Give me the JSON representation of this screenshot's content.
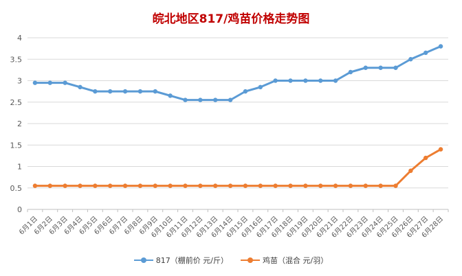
{
  "chart_data": {
    "type": "line",
    "title": "皖北地区817/鸡苗价格走势图",
    "xlabel": "",
    "ylabel": "",
    "ylim": [
      0,
      4
    ],
    "yticks": [
      "0",
      "0.5",
      "1",
      "1.5",
      "2",
      "2.5",
      "3",
      "3.5",
      "4"
    ],
    "grid": true,
    "legend_position": "bottom",
    "categories": [
      "6月1日",
      "6月2日",
      "6月3日",
      "6月4日",
      "6月5日",
      "6月6日",
      "6月7日",
      "6月8日",
      "6月9日",
      "6月10日",
      "6月11日",
      "6月12日",
      "6月13日",
      "6月14日",
      "6月15日",
      "6月16日",
      "6月17日",
      "6月18日",
      "6月19日",
      "6月20日",
      "6月21日",
      "6月22日",
      "6月23日",
      "6月24日",
      "6月25日",
      "6月26日",
      "6月27日",
      "6月28日"
    ],
    "series": [
      {
        "name": "817（棚前价 元/斤）",
        "color": "#5b9bd5",
        "values": [
          2.95,
          2.95,
          2.95,
          2.85,
          2.75,
          2.75,
          2.75,
          2.75,
          2.75,
          2.65,
          2.55,
          2.55,
          2.55,
          2.55,
          2.75,
          2.85,
          3.0,
          3.0,
          3.0,
          3.0,
          3.0,
          3.2,
          3.3,
          3.3,
          3.3,
          3.5,
          3.65,
          3.8
        ]
      },
      {
        "name": "鸡苗（混合 元/羽）",
        "color": "#ed7d31",
        "values": [
          0.55,
          0.55,
          0.55,
          0.55,
          0.55,
          0.55,
          0.55,
          0.55,
          0.55,
          0.55,
          0.55,
          0.55,
          0.55,
          0.55,
          0.55,
          0.55,
          0.55,
          0.55,
          0.55,
          0.55,
          0.55,
          0.55,
          0.55,
          0.55,
          0.55,
          0.9,
          1.2,
          1.4
        ]
      }
    ]
  }
}
